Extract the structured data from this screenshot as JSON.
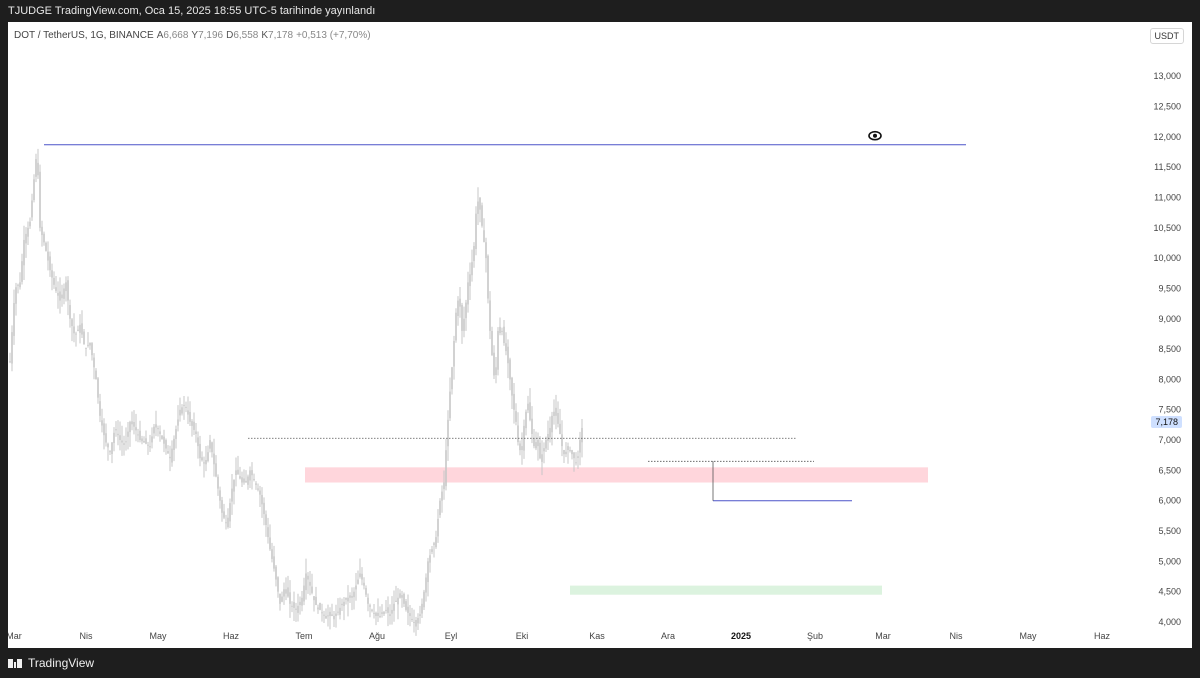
{
  "header": {
    "publish_text": "TJUDGE TradingView.com, Oca 15, 2025 18:55 UTC-5 tarihinde yayınlandı"
  },
  "legend": {
    "symbol": "DOT / TetherUS, 1G, BINANCE",
    "open_key": "A",
    "open": "6,668",
    "high_key": "Y",
    "high": "7,196",
    "low_key": "D",
    "low": "6,558",
    "close_key": "K",
    "close": "7,178",
    "change": "+0,513 (+7,70%)"
  },
  "currency": "USDT",
  "last_price_label": "7,178",
  "footer": {
    "brand": "TradingView"
  },
  "colors": {
    "candle": "#c7c7c7",
    "resistance_line": "#4b54c9",
    "red_zone": "#ffd6dc",
    "green_zone": "#dcf3df",
    "last_price_bg": "#cfe0ff"
  },
  "chart_data": {
    "type": "candlestick",
    "y_ticks": [
      "4,000",
      "4,500",
      "5,000",
      "5,500",
      "6,000",
      "6,500",
      "7,000",
      "7,500",
      "8,000",
      "8,500",
      "9,000",
      "9,500",
      "10,000",
      "10,500",
      "11,000",
      "11,500",
      "12,000",
      "12,500",
      "13,000"
    ],
    "ylim": [
      4.0,
      13.3
    ],
    "x_ticks": [
      {
        "label": "Mar",
        "bold": false
      },
      {
        "label": "Nis",
        "bold": false
      },
      {
        "label": "May",
        "bold": false
      },
      {
        "label": "Haz",
        "bold": false
      },
      {
        "label": "Tem",
        "bold": false
      },
      {
        "label": "Ağu",
        "bold": false
      },
      {
        "label": "Eyl",
        "bold": false
      },
      {
        "label": "Eki",
        "bold": false
      },
      {
        "label": "Kas",
        "bold": false
      },
      {
        "label": "Ara",
        "bold": false
      },
      {
        "label": "2025",
        "bold": true
      },
      {
        "label": "Şub",
        "bold": false
      },
      {
        "label": "Mar",
        "bold": false
      },
      {
        "label": "Nis",
        "bold": false
      },
      {
        "label": "May",
        "bold": false
      },
      {
        "label": "Haz",
        "bold": false
      }
    ],
    "candles_start": "Mar",
    "price_path": [
      [
        0,
        8.3
      ],
      [
        5,
        9.5
      ],
      [
        10,
        9.6
      ],
      [
        14,
        10.3
      ],
      [
        20,
        10.6
      ],
      [
        24,
        11.3
      ],
      [
        27,
        11.8
      ],
      [
        30,
        10.5
      ],
      [
        35,
        10.2
      ],
      [
        40,
        9.8
      ],
      [
        45,
        9.5
      ],
      [
        50,
        9.3
      ],
      [
        56,
        9.6
      ],
      [
        60,
        9.0
      ],
      [
        65,
        8.7
      ],
      [
        70,
        8.9
      ],
      [
        75,
        8.5
      ],
      [
        80,
        8.6
      ],
      [
        83,
        8.3
      ],
      [
        86,
        8.0
      ],
      [
        90,
        7.4
      ],
      [
        95,
        7.0
      ],
      [
        100,
        6.8
      ],
      [
        105,
        7.2
      ],
      [
        110,
        7.0
      ],
      [
        115,
        6.9
      ],
      [
        120,
        7.3
      ],
      [
        125,
        7.2
      ],
      [
        130,
        7.0
      ],
      [
        140,
        6.9
      ],
      [
        145,
        7.3
      ],
      [
        150,
        7.1
      ],
      [
        160,
        6.7
      ],
      [
        165,
        7.1
      ],
      [
        170,
        7.5
      ],
      [
        175,
        7.6
      ],
      [
        180,
        7.3
      ],
      [
        186,
        7.1
      ],
      [
        190,
        6.7
      ],
      [
        196,
        6.6
      ],
      [
        200,
        7.0
      ],
      [
        206,
        6.4
      ],
      [
        212,
        5.8
      ],
      [
        217,
        5.6
      ],
      [
        222,
        6.2
      ],
      [
        226,
        6.5
      ],
      [
        232,
        6.3
      ],
      [
        236,
        6.3
      ],
      [
        240,
        6.5
      ],
      [
        245,
        6.3
      ],
      [
        250,
        6.1
      ],
      [
        255,
        5.7
      ],
      [
        260,
        5.2
      ],
      [
        265,
        4.8
      ],
      [
        270,
        4.3
      ],
      [
        275,
        4.6
      ],
      [
        280,
        4.3
      ],
      [
        286,
        4.2
      ],
      [
        292,
        4.4
      ],
      [
        296,
        4.8
      ],
      [
        300,
        4.6
      ],
      [
        305,
        4.3
      ],
      [
        310,
        4.2
      ],
      [
        315,
        4.1
      ],
      [
        320,
        4.1
      ],
      [
        326,
        4.1
      ],
      [
        332,
        4.3
      ],
      [
        338,
        4.4
      ],
      [
        342,
        4.4
      ],
      [
        346,
        4.6
      ],
      [
        350,
        4.8
      ],
      [
        354,
        4.6
      ],
      [
        358,
        4.3
      ],
      [
        362,
        4.2
      ],
      [
        366,
        4.1
      ],
      [
        370,
        4.1
      ],
      [
        376,
        4.2
      ],
      [
        380,
        4.1
      ],
      [
        384,
        4.3
      ],
      [
        388,
        4.4
      ],
      [
        392,
        4.4
      ],
      [
        396,
        4.2
      ],
      [
        400,
        4.1
      ],
      [
        404,
        4.0
      ],
      [
        410,
        4.1
      ],
      [
        415,
        4.6
      ],
      [
        418,
        5.0
      ],
      [
        422,
        5.2
      ],
      [
        426,
        5.4
      ],
      [
        430,
        6.0
      ],
      [
        434,
        6.3
      ],
      [
        437,
        7.1
      ],
      [
        440,
        7.8
      ],
      [
        443,
        8.4
      ],
      [
        446,
        9.1
      ],
      [
        449,
        9.4
      ],
      [
        452,
        8.8
      ],
      [
        455,
        9.1
      ],
      [
        458,
        9.6
      ],
      [
        461,
        9.8
      ],
      [
        464,
        10.2
      ],
      [
        467,
        11.0
      ],
      [
        470,
        10.8
      ],
      [
        473,
        10.4
      ],
      [
        476,
        10.0
      ],
      [
        479,
        9.0
      ],
      [
        482,
        8.4
      ],
      [
        485,
        7.9
      ],
      [
        488,
        8.8
      ],
      [
        491,
        8.9
      ],
      [
        494,
        8.6
      ],
      [
        497,
        8.4
      ],
      [
        500,
        8.0
      ],
      [
        503,
        7.6
      ],
      [
        506,
        7.3
      ],
      [
        509,
        6.8
      ],
      [
        512,
        6.9
      ],
      [
        515,
        7.4
      ],
      [
        518,
        7.6
      ],
      [
        521,
        7.2
      ],
      [
        524,
        6.9
      ],
      [
        527,
        7.0
      ],
      [
        530,
        6.7
      ],
      [
        533,
        6.8
      ],
      [
        536,
        7.0
      ],
      [
        540,
        7.2
      ],
      [
        543,
        7.5
      ],
      [
        546,
        7.4
      ],
      [
        549,
        7.2
      ],
      [
        552,
        6.9
      ],
      [
        555,
        6.7
      ],
      [
        558,
        6.9
      ],
      [
        561,
        6.8
      ],
      [
        564,
        6.7
      ],
      [
        567,
        6.6
      ],
      [
        570,
        7.0
      ],
      [
        572,
        7.2
      ]
    ],
    "annotations": {
      "resistance_line": {
        "y": 11.87
      },
      "dotted_line_upper": {
        "y": 7.03
      },
      "dotted_line_lower": {
        "y": 6.65
      },
      "red_zone": {
        "y_low": 6.3,
        "y_high": 6.55
      },
      "green_zone": {
        "y_low": 4.45,
        "y_high": 4.6
      },
      "support_line": {
        "y": 6.0
      },
      "eye_icon": "visibility-eye-icon"
    }
  }
}
